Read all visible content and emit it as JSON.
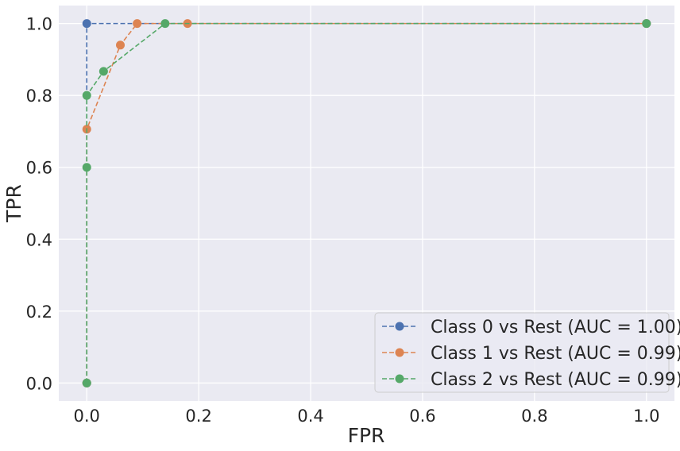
{
  "chart_data": {
    "type": "line",
    "xlabel": "FPR",
    "ylabel": "TPR",
    "xlim": [
      -0.05,
      1.05
    ],
    "ylim": [
      -0.05,
      1.05
    ],
    "xticks": [
      "0.0",
      "0.2",
      "0.4",
      "0.6",
      "0.8",
      "1.0"
    ],
    "yticks": [
      "0.0",
      "0.2",
      "0.4",
      "0.6",
      "0.8",
      "1.0"
    ],
    "grid": true,
    "legend_position": "bottom-right",
    "line_style": "dashed",
    "marker": "circle",
    "series": [
      {
        "name": "Class 0 vs Rest (AUC = 1.00)",
        "color": "#4c72b0",
        "x": [
          0.0,
          0.0,
          1.0
        ],
        "y": [
          0.0,
          1.0,
          1.0
        ]
      },
      {
        "name": "Class 1 vs Rest (AUC = 0.99)",
        "color": "#dd8452",
        "x": [
          0.0,
          0.0,
          0.06,
          0.09,
          0.18,
          1.0
        ],
        "y": [
          0.0,
          0.706,
          0.94,
          1.0,
          1.0,
          1.0
        ]
      },
      {
        "name": "Class 2 vs Rest (AUC = 0.99)",
        "color": "#55a868",
        "x": [
          0.0,
          0.0,
          0.0,
          0.03,
          0.14,
          1.0
        ],
        "y": [
          0.0,
          0.6,
          0.8,
          0.867,
          1.0,
          1.0
        ]
      }
    ]
  }
}
